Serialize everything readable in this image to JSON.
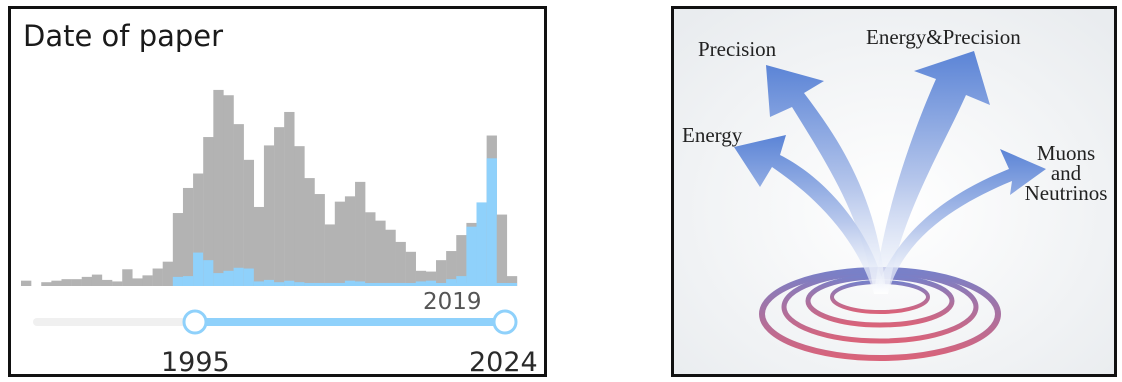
{
  "histogram": {
    "title": "Date of paper",
    "slider": {
      "min_label": "1995",
      "max_label": "2024",
      "marker_label": "2019"
    },
    "colors": {
      "total": "#b3b3b3",
      "selected": "#8fd1fb",
      "track": "#f0f0f0",
      "handle": "#8fd1fb"
    }
  },
  "chart_data": {
    "type": "bar",
    "stacked": true,
    "x_start": 1980,
    "x_step": 0.5,
    "series": [
      {
        "values": [
          0.7,
          0,
          0.5,
          0.7,
          0.9,
          0.9,
          1.2,
          1.5,
          0.8,
          0.6,
          2.2,
          1.0,
          1.4,
          2.3,
          3.2,
          9.6,
          12.9,
          14.8,
          19.6,
          25.8,
          25.1,
          21.3,
          16.6,
          10.4,
          18.5,
          20.9,
          22.9,
          18.4,
          14.2,
          12.1,
          8.1,
          11.1,
          11.8,
          13.7,
          9.7,
          8.6,
          7.4,
          5.8,
          4.5,
          2.0,
          1.9,
          3.4,
          4.6,
          6.7,
          8.3,
          8.7,
          19.8,
          9.4,
          1.3
        ]
      },
      {
        "values": [
          0,
          0,
          0,
          0,
          0,
          0,
          0,
          0,
          0,
          0,
          0,
          0,
          0,
          0,
          0,
          1.2,
          1.3,
          4.4,
          3.4,
          1.7,
          2.0,
          2.4,
          2.3,
          0.6,
          0.8,
          0.5,
          0.7,
          0.5,
          0.4,
          0.4,
          0.4,
          0.4,
          0.7,
          0.6,
          0.3,
          0.4,
          0.4,
          0.4,
          0.2,
          0.6,
          0.7,
          0.3,
          0.9,
          1.3,
          7.8,
          11.0,
          16.8,
          0,
          0
        ]
      }
    ],
    "markers": [
      {
        "x": 2019,
        "symbol": "★"
      }
    ]
  },
  "diagram": {
    "labels": {
      "precision": "Precision",
      "energy_precision": "Energy&Precision",
      "energy": "Energy",
      "muons": [
        "Muons",
        "and",
        "Neutrinos"
      ]
    },
    "colors": {
      "arrow": "#5b84d6",
      "ring_top": "#7880c8",
      "ring_bottom": "#d9637a"
    }
  }
}
